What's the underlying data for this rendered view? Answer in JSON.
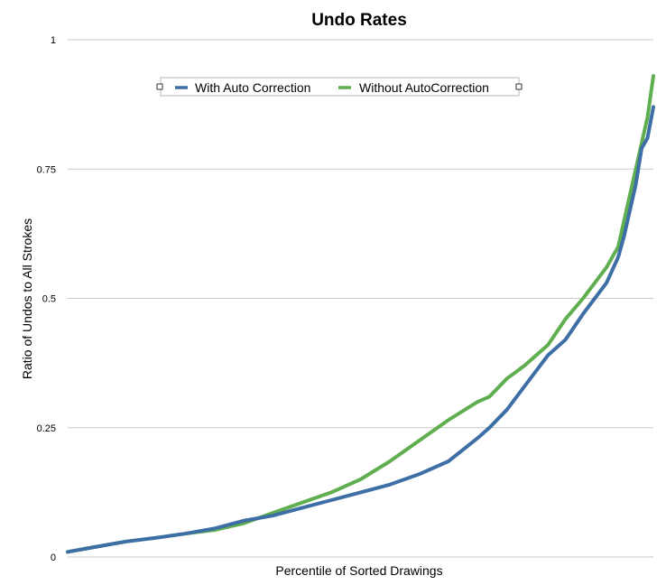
{
  "chart_data": {
    "type": "line",
    "title": "Undo Rates",
    "xlabel": "Percentile of Sorted Drawings",
    "ylabel": "Ratio of Undos to All Strokes",
    "ylim": [
      0,
      1
    ],
    "yticks": [
      {
        "value": 0,
        "label": "0"
      },
      {
        "value": 0.25,
        "label": "0.25"
      },
      {
        "value": 0.5,
        "label": "0.5"
      },
      {
        "value": 0.75,
        "label": "0.75"
      },
      {
        "value": 1,
        "label": "1"
      }
    ],
    "grid": true,
    "legend_position": "top",
    "series": [
      {
        "name": "With Auto Correction",
        "color": "#3d6ea5",
        "x": [
          0,
          0.05,
          0.1,
          0.15,
          0.2,
          0.25,
          0.3,
          0.35,
          0.4,
          0.45,
          0.5,
          0.55,
          0.6,
          0.65,
          0.7,
          0.72,
          0.75,
          0.78,
          0.8,
          0.82,
          0.85,
          0.88,
          0.9,
          0.92,
          0.94,
          0.95,
          0.96,
          0.97,
          0.98,
          0.99,
          1.0
        ],
        "y": [
          0.01,
          0.02,
          0.03,
          0.037,
          0.045,
          0.055,
          0.07,
          0.08,
          0.095,
          0.11,
          0.125,
          0.14,
          0.16,
          0.185,
          0.23,
          0.25,
          0.285,
          0.33,
          0.36,
          0.39,
          0.42,
          0.47,
          0.5,
          0.53,
          0.58,
          0.62,
          0.67,
          0.72,
          0.79,
          0.81,
          0.87
        ]
      },
      {
        "name": "Without AutoCorrection",
        "color": "#5fae4f",
        "x": [
          0,
          0.05,
          0.1,
          0.15,
          0.2,
          0.25,
          0.3,
          0.35,
          0.4,
          0.45,
          0.5,
          0.55,
          0.6,
          0.65,
          0.7,
          0.72,
          0.75,
          0.78,
          0.8,
          0.82,
          0.85,
          0.88,
          0.9,
          0.92,
          0.94,
          0.95,
          0.96,
          0.97,
          0.98,
          0.99,
          1.0
        ],
        "y": [
          0.01,
          0.02,
          0.03,
          0.037,
          0.045,
          0.052,
          0.065,
          0.085,
          0.105,
          0.125,
          0.15,
          0.185,
          0.225,
          0.265,
          0.3,
          0.31,
          0.345,
          0.37,
          0.39,
          0.41,
          0.46,
          0.5,
          0.53,
          0.56,
          0.6,
          0.65,
          0.7,
          0.75,
          0.8,
          0.85,
          0.93
        ]
      }
    ]
  }
}
